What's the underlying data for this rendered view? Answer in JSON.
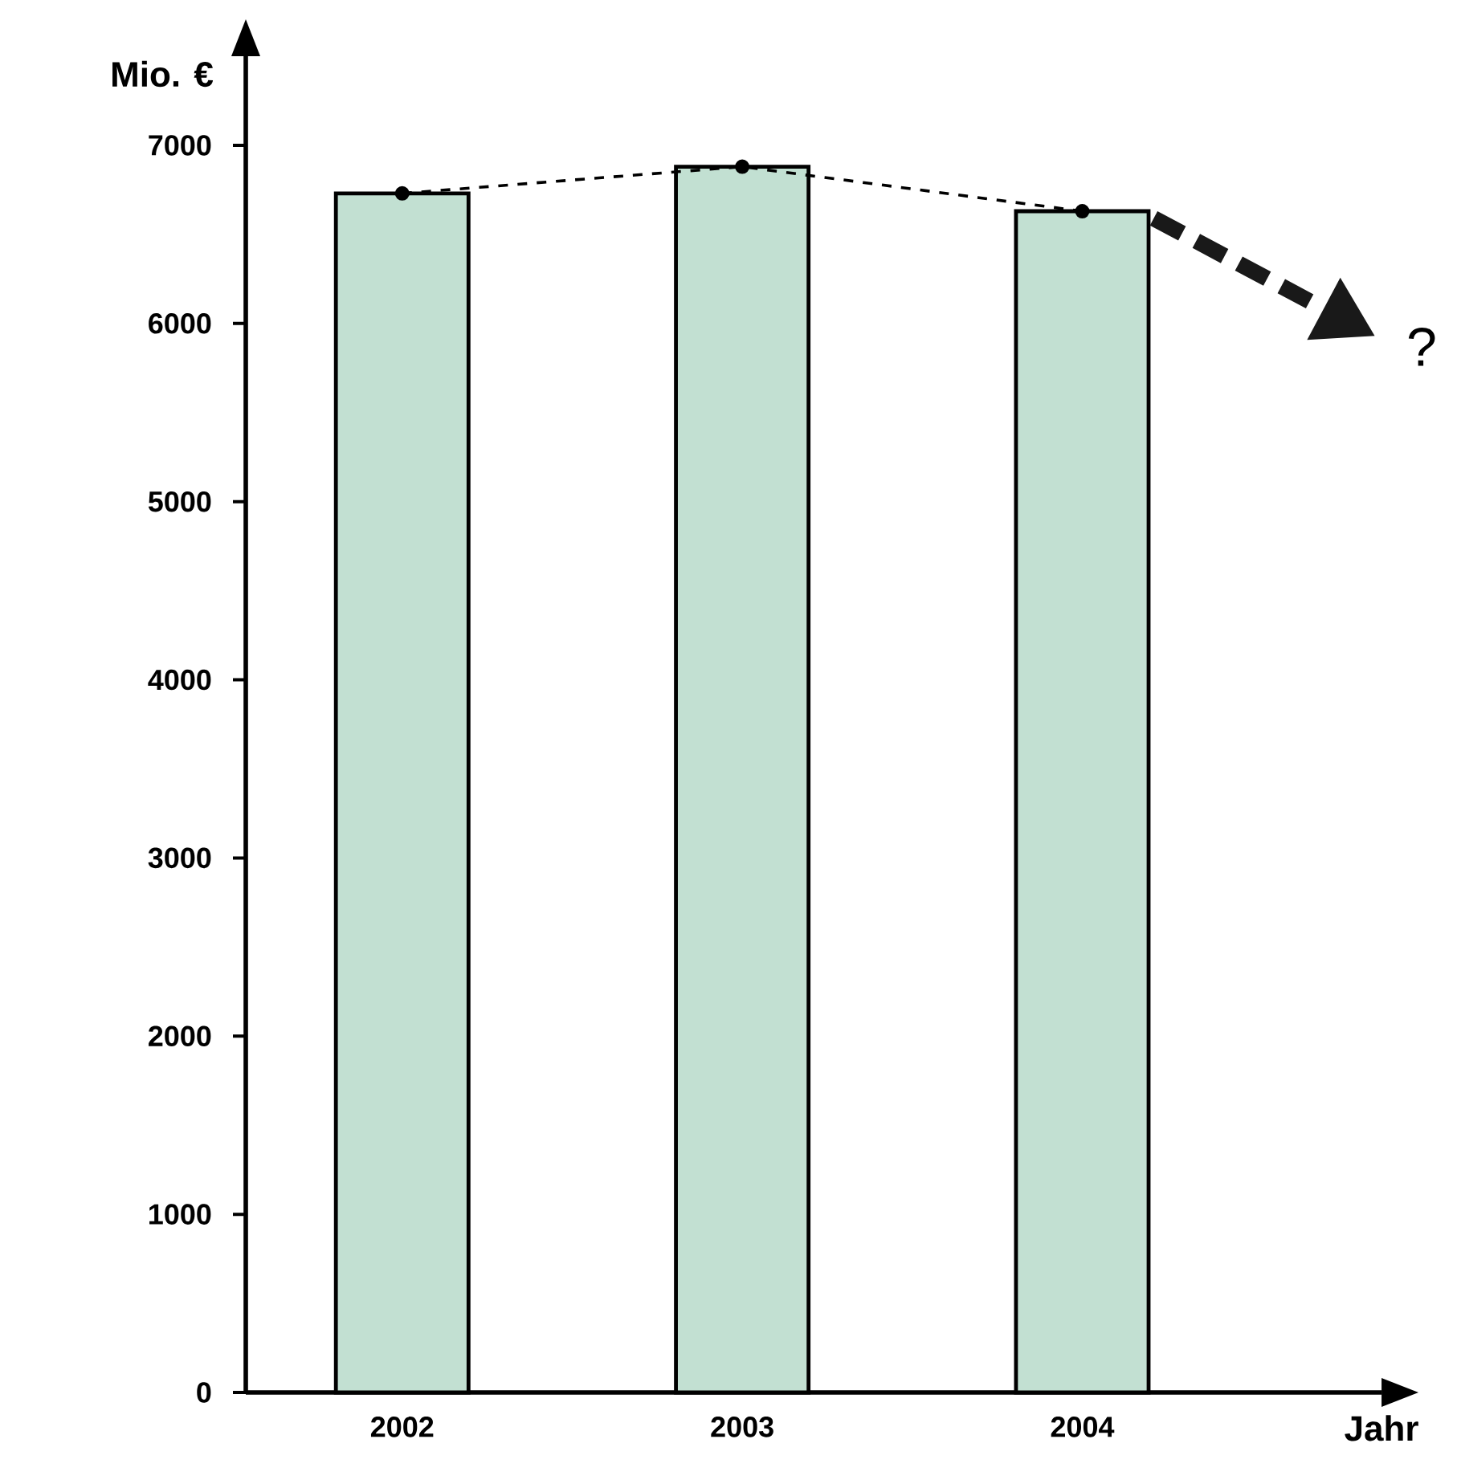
{
  "chart_data": {
    "type": "bar",
    "ylabel": "Mio. €",
    "xlabel": "Jahr",
    "categories": [
      "2002",
      "2003",
      "2004"
    ],
    "series": [
      {
        "color": "#c2e0d2",
        "values": [
          6730,
          6880,
          6630
        ]
      },
      {
        "type": "line",
        "color": "#000000",
        "values": [
          6730,
          6880,
          6630
        ],
        "marker": "circle",
        "line_style": "dashed"
      }
    ],
    "ylim": [
      0,
      7500
    ],
    "yticks": [
      0,
      1000,
      2000,
      3000,
      4000,
      5000,
      6000,
      7000
    ],
    "annotations": [
      "?"
    ],
    "grid": false
  }
}
